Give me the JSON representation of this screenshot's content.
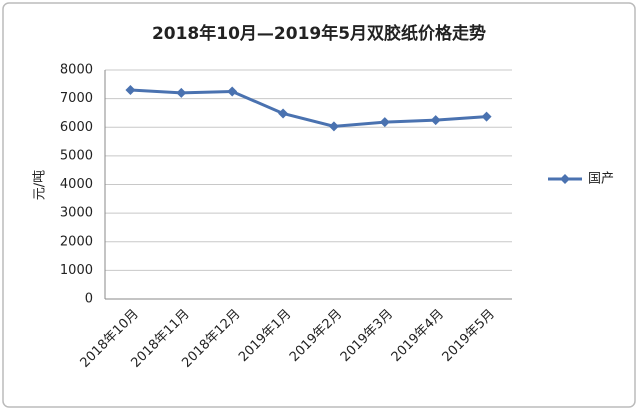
{
  "chart_data": {
    "type": "line",
    "title": "2018年10月—2019年5月双胶纸价格走势",
    "y_label": "元/吨",
    "categories": [
      "2018年10月",
      "2018年11月",
      "2018年12月",
      "2019年1月",
      "2019年2月",
      "2019年3月",
      "2019年4月",
      "2019年5月"
    ],
    "series": [
      {
        "name": "国产",
        "color": "#4a72b0",
        "values": [
          7300,
          7200,
          7250,
          6480,
          6030,
          6180,
          6250,
          6370
        ]
      }
    ],
    "ylim": [
      0,
      8000
    ],
    "yticks": [
      0,
      1000,
      2000,
      3000,
      4000,
      5000,
      6000,
      7000,
      8000
    ],
    "grid": true,
    "legend": "right"
  }
}
